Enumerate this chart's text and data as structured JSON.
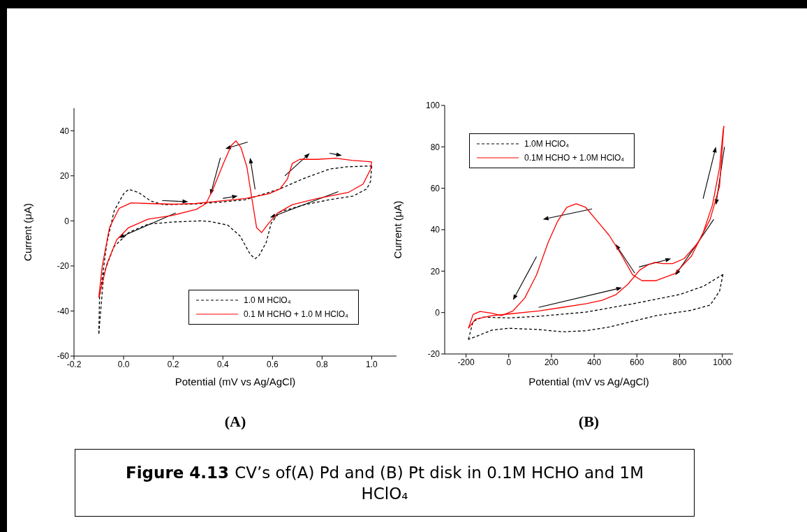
{
  "chart_data": [
    {
      "type": "line",
      "title": "(A)",
      "xlabel": "Potential (mV vs Ag/AgCl)",
      "ylabel": "Current (μA)",
      "xlim": [
        -0.2,
        1.1
      ],
      "xticks": [
        -0.2,
        {
          "value": 0,
          "label": "0.0"
        },
        0.2,
        0.4,
        0.6,
        0.8,
        {
          "value": 1,
          "label": "1.0"
        }
      ],
      "ylim": [
        -60,
        50
      ],
      "yticks": [
        -60,
        -40,
        -20,
        0,
        20,
        40
      ],
      "legend": "bottom right",
      "series": [
        {
          "name": "1.0 M HClO₄",
          "color": "#000000",
          "line_style": "dashed",
          "x": [
            -0.1,
            -0.097,
            -0.067,
            -0.038,
            0,
            0.02,
            0.06,
            0.11,
            0.16,
            0.29,
            0.39,
            0.49,
            0.585,
            0.63,
            0.73,
            0.83,
            0.9,
            1.0
          ],
          "values": [
            -50,
            -34,
            -9.5,
            4.5,
            12,
            14,
            12.6,
            8.8,
            7.2,
            7.5,
            8.3,
            9.4,
            12.6,
            14.2,
            19,
            23,
            24,
            24.4
          ]
        },
        {
          "color": "#000000",
          "line_style": "dashed",
          "x": [
            1.0,
            0.995,
            0.98,
            0.925,
            0.83,
            0.73,
            0.63,
            0.595,
            0.575,
            0.546,
            0.53,
            0.51,
            0.47,
            0.42,
            0.35,
            0.31,
            0.2,
            0.1,
            0.02,
            -0.04,
            -0.08,
            -0.1
          ],
          "values": [
            24.4,
            17.4,
            14.2,
            11,
            9.4,
            7.2,
            4,
            -1,
            -9.5,
            -15.4,
            -16.8,
            -14.8,
            -6.8,
            -1.9,
            -0.3,
            0,
            -0.5,
            -1.4,
            -5.2,
            -11.6,
            -23.4,
            -50
          ]
        },
        {
          "name": "0.1 M HCHO +  1.0 M HClO₄",
          "color": "#ff0000",
          "line_style": "solid",
          "x": [
            -0.1,
            -0.086,
            -0.057,
            -0.018,
            0.03,
            0.1,
            0.2,
            0.29,
            0.39,
            0.49,
            0.585,
            0.63,
            0.66,
            0.68,
            0.71,
            0.78,
            0.855,
            0.92,
            1.0
          ],
          "values": [
            -34,
            -20,
            -3,
            5.6,
            8,
            7.7,
            7.4,
            7.7,
            8.8,
            9.9,
            12,
            14.2,
            18.5,
            25.5,
            27.3,
            27.3,
            27.8,
            26.9,
            26.2
          ]
        },
        {
          "color": "#ff0000",
          "line_style": "solid",
          "x": [
            1.0,
            0.995,
            0.965,
            0.905,
            0.78,
            0.68,
            0.62,
            0.585,
            0.556,
            0.536,
            0.517,
            0.497,
            0.473,
            0.453,
            0.434,
            0.4,
            0.361,
            0.332,
            0.293,
            0.196,
            0.099,
            0.02,
            -0.028,
            -0.067,
            -0.1
          ],
          "values": [
            26.2,
            22.8,
            16.3,
            12.6,
            9.9,
            7.2,
            3.4,
            -1,
            -5.2,
            -3,
            9.9,
            23.9,
            32.5,
            35.5,
            33.5,
            24.9,
            14.2,
            7.7,
            5.1,
            2.4,
            0.8,
            -3,
            -8.4,
            -19,
            -34
          ]
        }
      ],
      "annotations": [
        "Figure 4.13",
        "CV’s of(A) Pd and (B) Pt disk in 0.1M HCHO and 1M HClO₄"
      ]
    },
    {
      "type": "line",
      "title": "(B)",
      "xlabel": "Potential (mV vs Ag/AgCl)",
      "ylabel": "Current (μA)",
      "xlim": [
        -300,
        1050
      ],
      "xticks": [
        -200,
        0,
        200,
        400,
        600,
        800,
        1000
      ],
      "ylim": [
        -20,
        100
      ],
      "yticks": [
        -20,
        0,
        20,
        40,
        60,
        80,
        100
      ],
      "legend": "top left",
      "series": [
        {
          "name": "1.0M HClO₄",
          "color": "#000000",
          "line_style": "dashed",
          "x": [
            -189,
            -167,
            -123,
            0,
            141,
            360,
            580,
            800,
            910,
            1003
          ],
          "values": [
            -13,
            -4.3,
            -2.2,
            -2.6,
            -1.8,
            0.2,
            4.2,
            8.7,
            12.6,
            18.4
          ]
        },
        {
          "color": "#000000",
          "line_style": "dashed",
          "x": [
            1003,
            987,
            943,
            855,
            690,
            470,
            360,
            251,
            141,
            0,
            -79,
            -189
          ],
          "values": [
            18.4,
            10.3,
            3.6,
            1.1,
            -1.5,
            -7,
            -8.8,
            -9.3,
            -8.2,
            -7.6,
            -8.5,
            -13
          ]
        },
        {
          "name": "0.1M HCHO + 1.0M HClO₄",
          "color": "#ff0000",
          "line_style": "solid",
          "x": [
            -189,
            -156,
            -79,
            0,
            141,
            251,
            360,
            437,
            503,
            558,
            613,
            657,
            684,
            723,
            767,
            822,
            888,
            943,
            987,
            1007
          ],
          "values": [
            -7.6,
            -3.2,
            -1.5,
            -0.7,
            0.8,
            2.5,
            4.2,
            5.9,
            8.7,
            13.7,
            20.5,
            23.3,
            24.2,
            23.6,
            23.6,
            26.1,
            34,
            45,
            61,
            90
          ]
        },
        {
          "color": "#ff0000",
          "line_style": "solid",
          "x": [
            1007,
            1003,
            987,
            954,
            910,
            855,
            778,
            690,
            624,
            580,
            525,
            470,
            415,
            360,
            316,
            272,
            229,
            185,
            130,
            75,
            20,
            -35,
            -79,
            -134,
            -167,
            -189
          ],
          "values": [
            90,
            87,
            70,
            52,
            38.5,
            27.2,
            18.8,
            15.4,
            15.4,
            18.2,
            28.3,
            37.3,
            44.1,
            50.8,
            52.5,
            50.8,
            44.1,
            34,
            18.2,
            7,
            0.8,
            -1.5,
            -0.3,
            0.5,
            -0.9,
            -7.6
          ]
        }
      ]
    }
  ]
}
